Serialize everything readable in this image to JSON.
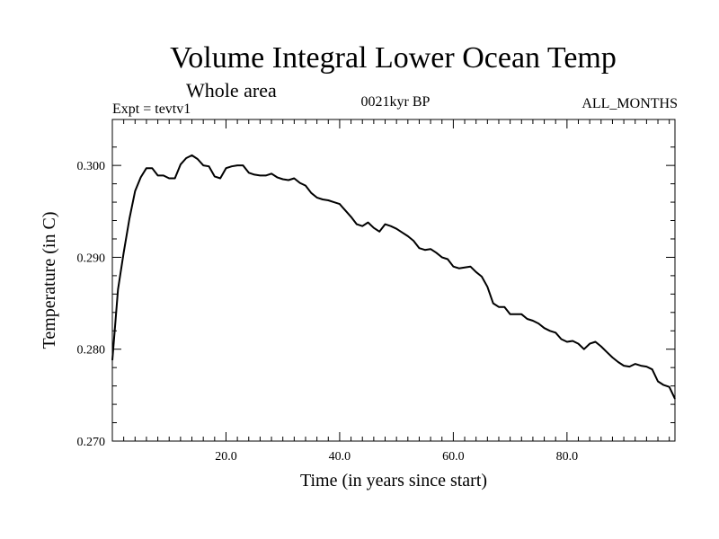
{
  "chart_data": {
    "type": "line",
    "title": "Volume Integral Lower Ocean Temp",
    "subtitle": "Whole area",
    "annotations": {
      "left": "Expt = tevtv1",
      "center": "0021kyr BP",
      "right": "ALL_MONTHS"
    },
    "xlabel": "Time (in years since start)",
    "ylabel": "Temperature (in C)",
    "xlim": [
      0,
      99
    ],
    "ylim": [
      0.27,
      0.305
    ],
    "x_ticks": [
      {
        "value": 20,
        "label": "20.0"
      },
      {
        "value": 40,
        "label": "40.0"
      },
      {
        "value": 60,
        "label": "60.0"
      },
      {
        "value": 80,
        "label": "80.0"
      }
    ],
    "y_ticks": [
      {
        "value": 0.27,
        "label": "0.270"
      },
      {
        "value": 0.28,
        "label": "0.280"
      },
      {
        "value": 0.29,
        "label": "0.290"
      },
      {
        "value": 0.3,
        "label": "0.300"
      }
    ],
    "series": [
      {
        "name": "tevtv1",
        "x": [
          0,
          1,
          2,
          3,
          4,
          5,
          6,
          7,
          8,
          9,
          10,
          11,
          12,
          13,
          14,
          15,
          16,
          17,
          18,
          19,
          20,
          21,
          22,
          23,
          24,
          25,
          26,
          27,
          28,
          29,
          30,
          31,
          32,
          33,
          34,
          35,
          36,
          37,
          38,
          39,
          40,
          41,
          42,
          43,
          44,
          45,
          46,
          47,
          48,
          49,
          50,
          51,
          52,
          53,
          54,
          55,
          56,
          57,
          58,
          59,
          60,
          61,
          62,
          63,
          64,
          65,
          66,
          67,
          68,
          69,
          70,
          71,
          72,
          73,
          74,
          75,
          76,
          77,
          78,
          79,
          80,
          81,
          82,
          83,
          84,
          85,
          86,
          87,
          88,
          89,
          90,
          91,
          92,
          93,
          94,
          95,
          96,
          97,
          98,
          99
        ],
        "values": [
          0.2788,
          0.2865,
          0.2905,
          0.2942,
          0.2972,
          0.2987,
          0.2997,
          0.2997,
          0.2989,
          0.2989,
          0.2986,
          0.2986,
          0.3001,
          0.3008,
          0.3011,
          0.3007,
          0.3,
          0.2999,
          0.2988,
          0.2986,
          0.2997,
          0.2999,
          0.3,
          0.3,
          0.2992,
          0.299,
          0.2989,
          0.2989,
          0.2991,
          0.2987,
          0.2985,
          0.2984,
          0.2986,
          0.2981,
          0.2978,
          0.297,
          0.2965,
          0.2963,
          0.2962,
          0.296,
          0.2958,
          0.2951,
          0.2944,
          0.2936,
          0.2934,
          0.2938,
          0.2932,
          0.2928,
          0.2936,
          0.2934,
          0.2931,
          0.2927,
          0.2923,
          0.2918,
          0.291,
          0.2908,
          0.2909,
          0.2905,
          0.29,
          0.2898,
          0.289,
          0.2888,
          0.2889,
          0.289,
          0.2884,
          0.2879,
          0.2868,
          0.285,
          0.2846,
          0.2846,
          0.2838,
          0.2838,
          0.2838,
          0.2833,
          0.2831,
          0.2828,
          0.2823,
          0.282,
          0.2818,
          0.2811,
          0.2808,
          0.2809,
          0.2806,
          0.28,
          0.2806,
          0.2808,
          0.2803,
          0.2797,
          0.2791,
          0.2786,
          0.2782,
          0.2781,
          0.2784,
          0.2782,
          0.2781,
          0.2778,
          0.2765,
          0.2761,
          0.2759,
          0.2746
        ]
      }
    ]
  }
}
